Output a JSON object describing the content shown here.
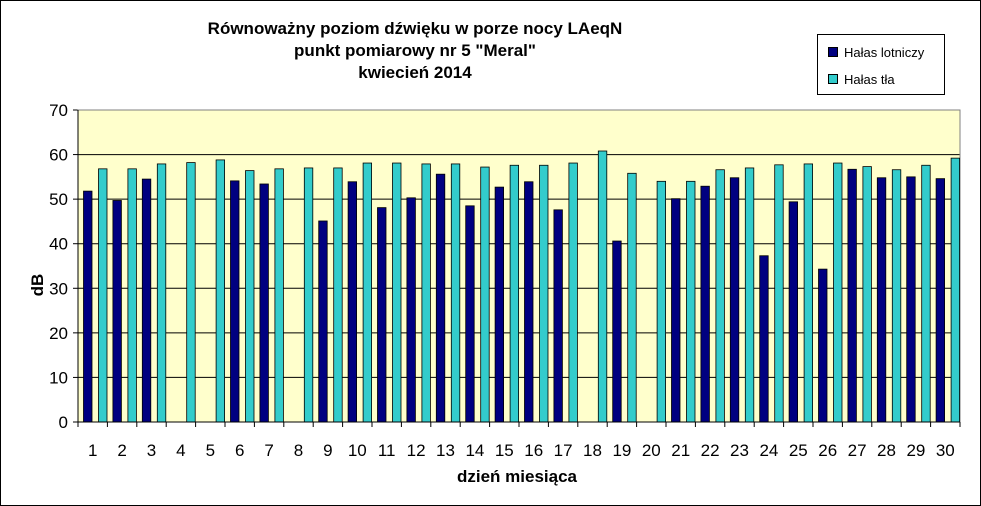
{
  "chart_data": {
    "type": "bar",
    "title": [
      "Równoważny poziom dźwięku w porze nocy LAeqN",
      "punkt pomiarowy nr 5 \"Meral\"",
      "kwiecień 2014"
    ],
    "xlabel": "dzień miesiąca",
    "ylabel": "dB",
    "ylim": [
      0,
      70
    ],
    "yticks": [
      "0",
      "10",
      "20",
      "30",
      "40",
      "50",
      "60",
      "70"
    ],
    "grid": true,
    "legend_position": "top-right",
    "categories": [
      "1",
      "2",
      "3",
      "4",
      "5",
      "6",
      "7",
      "8",
      "9",
      "10",
      "11",
      "12",
      "13",
      "14",
      "15",
      "16",
      "17",
      "18",
      "19",
      "20",
      "21",
      "22",
      "23",
      "24",
      "25",
      "26",
      "27",
      "28",
      "29",
      "30"
    ],
    "series": [
      {
        "name": "Hałas lotniczy",
        "color": "#000080",
        "values": [
          51.8,
          49.7,
          54.5,
          null,
          null,
          54.1,
          53.4,
          null,
          45.1,
          53.9,
          48.1,
          50.3,
          55.6,
          48.5,
          52.7,
          53.9,
          47.6,
          null,
          40.6,
          null,
          50.1,
          52.9,
          54.8,
          37.3,
          49.4,
          34.3,
          56.7,
          54.8,
          55.0,
          54.6
        ]
      },
      {
        "name": "Hałas tła",
        "color": "#33CCCC",
        "values": [
          56.8,
          56.8,
          57.9,
          58.2,
          58.8,
          56.4,
          56.8,
          57.0,
          57.0,
          58.1,
          58.1,
          57.9,
          57.9,
          57.2,
          57.6,
          57.6,
          58.1,
          60.8,
          55.8,
          54.0,
          54.0,
          56.6,
          57.0,
          57.7,
          57.9,
          58.1,
          57.3,
          56.6,
          57.6,
          59.2
        ]
      }
    ]
  },
  "colors": {
    "plot_background": "#FFFFCC",
    "gridline": "#000000"
  }
}
